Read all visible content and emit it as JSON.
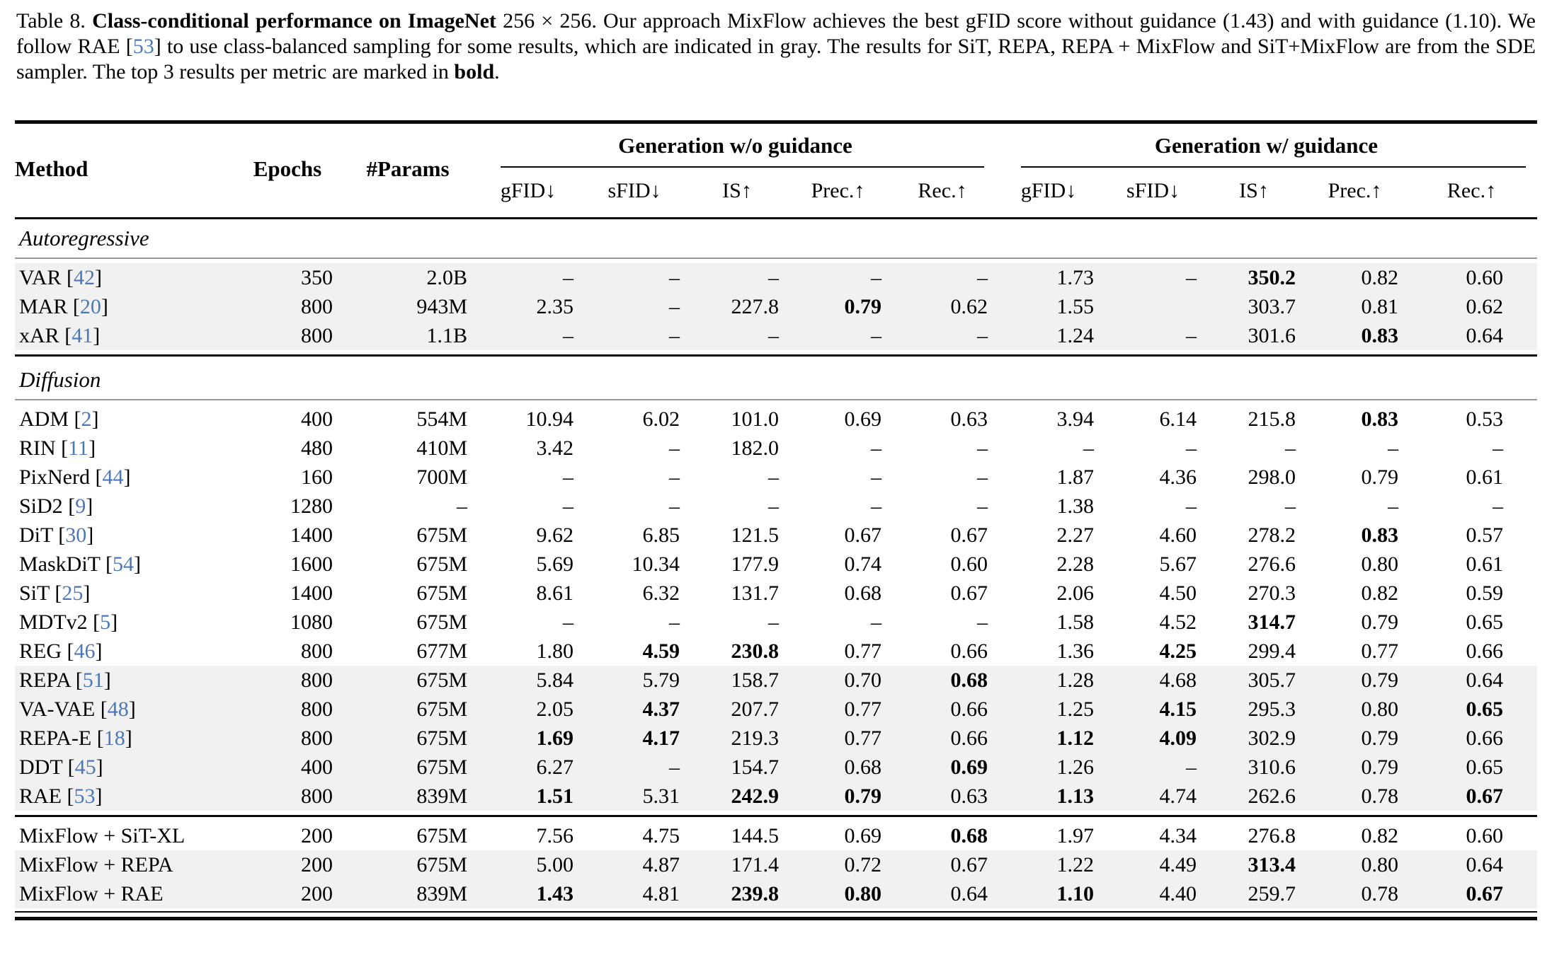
{
  "caption": {
    "segments": [
      {
        "t": "Table 8.  ",
        "style": "normal"
      },
      {
        "t": "Class-conditional performance on ImageNet",
        "style": "bold"
      },
      {
        "t": " 256 × 256.",
        "style": "normal"
      },
      {
        "t": " Our approach MixFlow achieves the best gFID score without guidance (1.43) and with guidance (1.10). We follow RAE [",
        "style": "normal"
      },
      {
        "t": "53",
        "style": "cite"
      },
      {
        "t": "] to use class-balanced sampling for some results, which are indicated in gray. The results for SiT, REPA, REPA + MixFlow and SiT+MixFlow are from the SDE sampler. The top 3 results per metric are marked in ",
        "style": "normal"
      },
      {
        "t": "bold",
        "style": "bold"
      },
      {
        "t": ".",
        "style": "normal"
      }
    ]
  },
  "colors": {
    "cite": "#4d78b8",
    "gray_row": "#f1f1f1"
  },
  "table": {
    "columns": {
      "method": "Method",
      "epochs": "Epochs",
      "params": "#Params"
    },
    "groups": [
      {
        "label": "Generation w/o guidance"
      },
      {
        "label": "Generation w/ guidance"
      }
    ],
    "metrics": [
      "gFID↓",
      "sFID↓",
      "IS↑",
      "Prec.↑",
      "Rec.↑"
    ],
    "sections": [
      {
        "label": "Autoregressive",
        "rows": [
          {
            "method": "VAR",
            "cite": "42",
            "epochs": "350",
            "params": "2.0B",
            "gray": true,
            "vals": [
              "–",
              "–",
              "–",
              "–",
              "–",
              "1.73",
              "–",
              "350.2",
              "0.82",
              "0.60"
            ],
            "bold": [
              7
            ]
          },
          {
            "method": "MAR",
            "cite": "20",
            "epochs": "800",
            "params": "943M",
            "gray": true,
            "vals": [
              "2.35",
              "–",
              "227.8",
              "0.79",
              "0.62",
              "1.55",
              "",
              "303.7",
              "0.81",
              "0.62"
            ],
            "bold": [
              3
            ]
          },
          {
            "method": "xAR",
            "cite": "41",
            "epochs": "800",
            "params": "1.1B",
            "gray": true,
            "vals": [
              "–",
              "–",
              "–",
              "–",
              "–",
              "1.24",
              "–",
              "301.6",
              "0.83",
              "0.64"
            ],
            "bold": [
              8
            ]
          }
        ]
      },
      {
        "label": "Diffusion",
        "rows": [
          {
            "method": "ADM",
            "cite": "2",
            "epochs": "400",
            "params": "554M",
            "gray": false,
            "vals": [
              "10.94",
              "6.02",
              "101.0",
              "0.69",
              "0.63",
              "3.94",
              "6.14",
              "215.8",
              "0.83",
              "0.53"
            ],
            "bold": [
              8
            ]
          },
          {
            "method": "RIN",
            "cite": "11",
            "epochs": "480",
            "params": "410M",
            "gray": false,
            "vals": [
              "3.42",
              "–",
              "182.0",
              "–",
              "–",
              "–",
              "–",
              "–",
              "–",
              "–"
            ],
            "bold": []
          },
          {
            "method": "PixNerd",
            "cite": "44",
            "epochs": "160",
            "params": "700M",
            "gray": false,
            "vals": [
              "–",
              "–",
              "–",
              "–",
              "–",
              "1.87",
              "4.36",
              "298.0",
              "0.79",
              "0.61"
            ],
            "bold": []
          },
          {
            "method": "SiD2",
            "cite": "9",
            "epochs": "1280",
            "params": "–",
            "gray": false,
            "vals": [
              "–",
              "–",
              "–",
              "–",
              "–",
              "1.38",
              "–",
              "–",
              "–",
              "–"
            ],
            "bold": []
          },
          {
            "method": "DiT",
            "cite": "30",
            "epochs": "1400",
            "params": "675M",
            "gray": false,
            "vals": [
              "9.62",
              "6.85",
              "121.5",
              "0.67",
              "0.67",
              "2.27",
              "4.60",
              "278.2",
              "0.83",
              "0.57"
            ],
            "bold": [
              8
            ]
          },
          {
            "method": "MaskDiT",
            "cite": "54",
            "epochs": "1600",
            "params": "675M",
            "gray": false,
            "vals": [
              "5.69",
              "10.34",
              "177.9",
              "0.74",
              "0.60",
              "2.28",
              "5.67",
              "276.6",
              "0.80",
              "0.61"
            ],
            "bold": []
          },
          {
            "method": "SiT",
            "cite": "25",
            "epochs": "1400",
            "params": "675M",
            "gray": false,
            "vals": [
              "8.61",
              "6.32",
              "131.7",
              "0.68",
              "0.67",
              "2.06",
              "4.50",
              "270.3",
              "0.82",
              "0.59"
            ],
            "bold": []
          },
          {
            "method": "MDTv2",
            "cite": "5",
            "epochs": "1080",
            "params": "675M",
            "gray": false,
            "vals": [
              "–",
              "–",
              "–",
              "–",
              "–",
              "1.58",
              "4.52",
              "314.7",
              "0.79",
              "0.65"
            ],
            "bold": [
              7
            ]
          },
          {
            "method": "REG",
            "cite": "46",
            "epochs": "800",
            "params": "677M",
            "gray": false,
            "vals": [
              "1.80",
              "4.59",
              "230.8",
              "0.77",
              "0.66",
              "1.36",
              "4.25",
              "299.4",
              "0.77",
              "0.66"
            ],
            "bold": [
              1,
              2,
              6
            ]
          },
          {
            "method": "REPA",
            "cite": "51",
            "epochs": "800",
            "params": "675M",
            "gray": true,
            "vals": [
              "5.84",
              "5.79",
              "158.7",
              "0.70",
              "0.68",
              "1.28",
              "4.68",
              "305.7",
              "0.79",
              "0.64"
            ],
            "bold": [
              4
            ]
          },
          {
            "method": "VA-VAE",
            "cite": "48",
            "epochs": "800",
            "params": "675M",
            "gray": true,
            "vals": [
              "2.05",
              "4.37",
              "207.7",
              "0.77",
              "0.66",
              "1.25",
              "4.15",
              "295.3",
              "0.80",
              "0.65"
            ],
            "bold": [
              1,
              6,
              9
            ]
          },
          {
            "method": "REPA-E",
            "cite": "18",
            "epochs": "800",
            "params": "675M",
            "gray": true,
            "vals": [
              "1.69",
              "4.17",
              "219.3",
              "0.77",
              "0.66",
              "1.12",
              "4.09",
              "302.9",
              "0.79",
              "0.66"
            ],
            "bold": [
              0,
              1,
              5,
              6
            ]
          },
          {
            "method": "DDT",
            "cite": "45",
            "epochs": "400",
            "params": "675M",
            "gray": true,
            "vals": [
              "6.27",
              "–",
              "154.7",
              "0.68",
              "0.69",
              "1.26",
              "–",
              "310.6",
              "0.79",
              "0.65"
            ],
            "bold": [
              4
            ]
          },
          {
            "method": "RAE",
            "cite": "53",
            "epochs": "800",
            "params": "839M",
            "gray": true,
            "vals": [
              "1.51",
              "5.31",
              "242.9",
              "0.79",
              "0.63",
              "1.13",
              "4.74",
              "262.6",
              "0.78",
              "0.67"
            ],
            "bold": [
              0,
              2,
              3,
              5,
              9
            ]
          }
        ]
      },
      {
        "label": null,
        "rows": [
          {
            "method": "MixFlow + SiT-XL",
            "cite": null,
            "epochs": "200",
            "params": "675M",
            "gray": false,
            "vals": [
              "7.56",
              "4.75",
              "144.5",
              "0.69",
              "0.68",
              "1.97",
              "4.34",
              "276.8",
              "0.82",
              "0.60"
            ],
            "bold": [
              4
            ]
          },
          {
            "method": "MixFlow + REPA",
            "cite": null,
            "epochs": "200",
            "params": "675M",
            "gray": true,
            "vals": [
              "5.00",
              "4.87",
              "171.4",
              "0.72",
              "0.67",
              "1.22",
              "4.49",
              "313.4",
              "0.80",
              "0.64"
            ],
            "bold": [
              7
            ]
          },
          {
            "method": "MixFlow + RAE",
            "cite": null,
            "epochs": "200",
            "params": "839M",
            "gray": true,
            "vals": [
              "1.43",
              "4.81",
              "239.8",
              "0.80",
              "0.64",
              "1.10",
              "4.40",
              "259.7",
              "0.78",
              "0.67"
            ],
            "bold": [
              0,
              2,
              3,
              5,
              9
            ]
          }
        ]
      }
    ]
  }
}
